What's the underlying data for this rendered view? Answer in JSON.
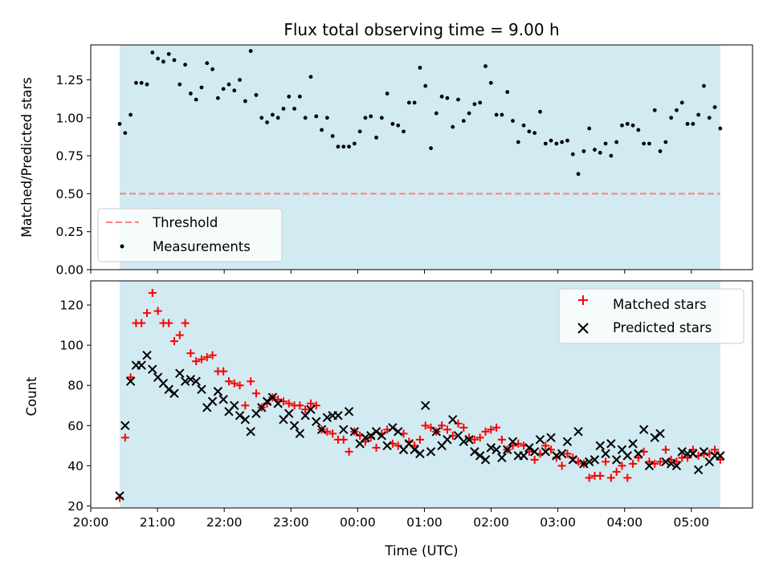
{
  "chart_data": [
    {
      "type": "scatter",
      "title": "Flux total observing time = 9.00 h",
      "xlabel": "",
      "ylabel": "Matched/Predicted stars",
      "ylim": [
        0,
        1.48
      ],
      "yticks": [
        0.0,
        0.25,
        0.5,
        0.75,
        1.0,
        1.25
      ],
      "ytick_labels": [
        "0.00",
        "0.25",
        "0.50",
        "0.75",
        "1.00",
        "1.25"
      ],
      "observing_window": {
        "start": "20:26",
        "end": "05:26",
        "color": "#add8e6"
      },
      "threshold": {
        "name": "Threshold",
        "value": 0.5,
        "color": "#ff7f7f"
      },
      "legend": {
        "placement": "lower-left",
        "entries": [
          "Threshold",
          "Measurements"
        ]
      },
      "series": [
        {
          "name": "Measurements",
          "color": "#000000",
          "marker": "dot",
          "values": [
            0.96,
            0.9,
            1.02,
            1.23,
            1.23,
            1.22,
            1.43,
            1.39,
            1.37,
            1.42,
            1.38,
            1.22,
            1.35,
            1.16,
            1.12,
            1.2,
            1.36,
            1.32,
            1.13,
            1.19,
            1.22,
            1.18,
            1.25,
            1.11,
            1.44,
            1.15,
            1.0,
            0.97,
            1.02,
            1.0,
            1.06,
            1.14,
            1.06,
            1.14,
            1.0,
            1.27,
            1.01,
            0.92,
            1.0,
            0.88,
            0.81,
            0.81,
            0.81,
            0.83,
            0.91,
            1.0,
            1.01,
            0.87,
            1.0,
            1.16,
            0.96,
            0.95,
            0.91,
            1.1,
            1.1,
            1.33,
            1.21,
            0.8,
            1.03,
            1.14,
            1.13,
            0.94,
            1.12,
            0.98,
            1.03,
            1.09,
            1.1,
            1.34,
            1.23,
            1.02,
            1.02,
            1.17,
            0.98,
            0.84,
            0.95,
            0.91,
            0.9,
            1.04,
            0.83,
            0.85,
            0.83,
            0.84,
            0.85,
            0.76,
            0.63,
            0.78,
            0.93,
            0.79,
            0.77,
            0.83,
            0.75,
            0.84,
            0.95,
            0.96,
            0.95,
            0.92,
            0.83,
            0.83,
            1.05,
            0.78,
            0.84,
            1.0,
            1.05,
            1.1,
            0.96,
            0.96,
            1.02,
            1.21,
            1.0,
            1.07,
            0.93
          ]
        }
      ]
    },
    {
      "type": "scatter",
      "title": "",
      "xlabel": "Time (UTC)",
      "ylabel": "Count",
      "ylim": [
        19,
        132
      ],
      "yticks": [
        20,
        40,
        60,
        80,
        100,
        120
      ],
      "ytick_labels": [
        "20",
        "40",
        "60",
        "80",
        "100",
        "120"
      ],
      "xlim": [
        "20:00",
        "05:55"
      ],
      "xticks": [
        "20:00",
        "21:00",
        "22:00",
        "23:00",
        "00:00",
        "01:00",
        "02:00",
        "03:00",
        "04:00",
        "05:00"
      ],
      "xtick_labels": [
        "20:00",
        "21:00",
        "22:00",
        "23:00",
        "00:00",
        "01:00",
        "02:00",
        "03:00",
        "04:00",
        "05:00"
      ],
      "observing_window": {
        "start": "20:26",
        "end": "05:26",
        "color": "#add8e6"
      },
      "legend": {
        "placement": "top-right",
        "entries": [
          "Matched stars",
          "Predicted stars"
        ]
      },
      "series": [
        {
          "name": "Matched stars",
          "color": "#ff0000",
          "marker": "plus",
          "values": [
            24,
            54,
            84,
            111,
            111,
            116,
            126,
            117,
            111,
            111,
            102,
            105,
            111,
            96,
            92,
            93,
            94,
            95,
            87,
            87,
            82,
            81,
            80,
            70,
            82,
            76,
            69,
            71,
            74,
            73,
            72,
            71,
            70,
            70,
            68,
            71,
            70,
            58,
            57,
            56,
            53,
            53,
            47,
            57,
            55,
            52,
            54,
            49,
            56,
            58,
            51,
            50,
            56,
            52,
            50,
            53,
            60,
            59,
            57,
            60,
            58,
            55,
            61,
            59,
            54,
            53,
            54,
            57,
            58,
            59,
            53,
            48,
            50,
            51,
            50,
            47,
            43,
            46,
            50,
            48,
            44,
            40,
            46,
            44,
            42,
            41,
            34,
            35,
            35,
            42,
            34,
            37,
            40,
            34,
            41,
            44,
            47,
            42,
            41,
            42,
            48,
            43,
            42,
            44,
            44,
            48,
            45,
            46,
            46,
            48,
            43
          ]
        },
        {
          "name": "Predicted stars",
          "color": "#000000",
          "marker": "cross",
          "values": [
            25,
            60,
            82,
            90,
            90,
            95,
            88,
            84,
            81,
            78,
            76,
            86,
            82,
            83,
            82,
            78,
            69,
            72,
            77,
            73,
            67,
            70,
            65,
            63,
            57,
            66,
            69,
            72,
            74,
            71,
            63,
            66,
            60,
            56,
            65,
            68,
            62,
            58,
            64,
            65,
            65,
            58,
            67,
            57,
            51,
            54,
            55,
            57,
            55,
            50,
            59,
            57,
            48,
            51,
            48,
            46,
            70,
            47,
            57,
            50,
            53,
            63,
            55,
            52,
            53,
            47,
            45,
            43,
            49,
            48,
            44,
            48,
            52,
            45,
            45,
            49,
            47,
            53,
            47,
            54,
            45,
            46,
            52,
            43,
            57,
            41,
            42,
            43,
            50,
            46,
            51,
            43,
            48,
            45,
            51,
            46,
            58,
            40,
            54,
            56,
            42,
            41,
            40,
            47,
            46,
            46,
            38,
            47,
            42,
            45,
            45
          ]
        }
      ]
    }
  ]
}
